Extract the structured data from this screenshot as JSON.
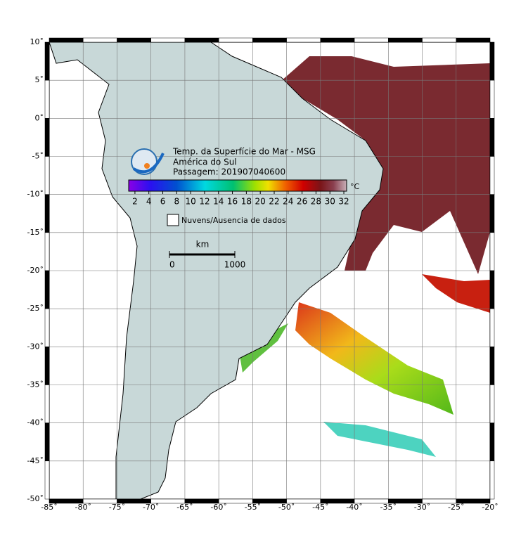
{
  "map": {
    "xticks": [
      {
        "value": -85,
        "label": "-85˚"
      },
      {
        "value": -80,
        "label": "-80˚"
      },
      {
        "value": -75,
        "label": "-75˚"
      },
      {
        "value": -70,
        "label": "-70˚"
      },
      {
        "value": -65,
        "label": "-65˚"
      },
      {
        "value": -60,
        "label": "-60˚"
      },
      {
        "value": -55,
        "label": "-55˚"
      },
      {
        "value": -50,
        "label": "-50˚"
      },
      {
        "value": -45,
        "label": "-45˚"
      },
      {
        "value": -40,
        "label": "-40˚"
      },
      {
        "value": -35,
        "label": "-35˚"
      },
      {
        "value": -30,
        "label": "-30˚"
      },
      {
        "value": -25,
        "label": "-25˚"
      },
      {
        "value": -20,
        "label": "-20˚"
      }
    ],
    "yticks": [
      {
        "value": 10,
        "label": "10˚"
      },
      {
        "value": 5,
        "label": "5˚"
      },
      {
        "value": 0,
        "label": "0˚"
      },
      {
        "value": -5,
        "label": "-5˚"
      },
      {
        "value": -10,
        "label": "-10˚"
      },
      {
        "value": -15,
        "label": "-15˚"
      },
      {
        "value": -20,
        "label": "-20˚"
      },
      {
        "value": -25,
        "label": "-25˚"
      },
      {
        "value": -30,
        "label": "-30˚"
      },
      {
        "value": -35,
        "label": "-35˚"
      },
      {
        "value": -40,
        "label": "-40˚"
      },
      {
        "value": -45,
        "label": "-45˚"
      },
      {
        "value": -50,
        "label": "-50˚"
      }
    ],
    "xlim": [
      -85,
      -20
    ],
    "ylim": [
      -50,
      10
    ],
    "grid": true
  },
  "legend": {
    "title_lines": [
      "Temp. da Superfície do Mar - MSG",
      "América do Sul",
      "Passagem: 201907040600"
    ],
    "colorbar": {
      "unit": "°C",
      "lim": [
        1.1,
        32.4
      ],
      "ticks": [
        2,
        4,
        6,
        8,
        10,
        12,
        14,
        16,
        18,
        20,
        22,
        24,
        26,
        28,
        30,
        32
      ]
    },
    "nodata_label": "Nuvens/Ausencia de dados",
    "scale": {
      "unit": "km",
      "ticks": [
        0,
        1000
      ]
    }
  }
}
